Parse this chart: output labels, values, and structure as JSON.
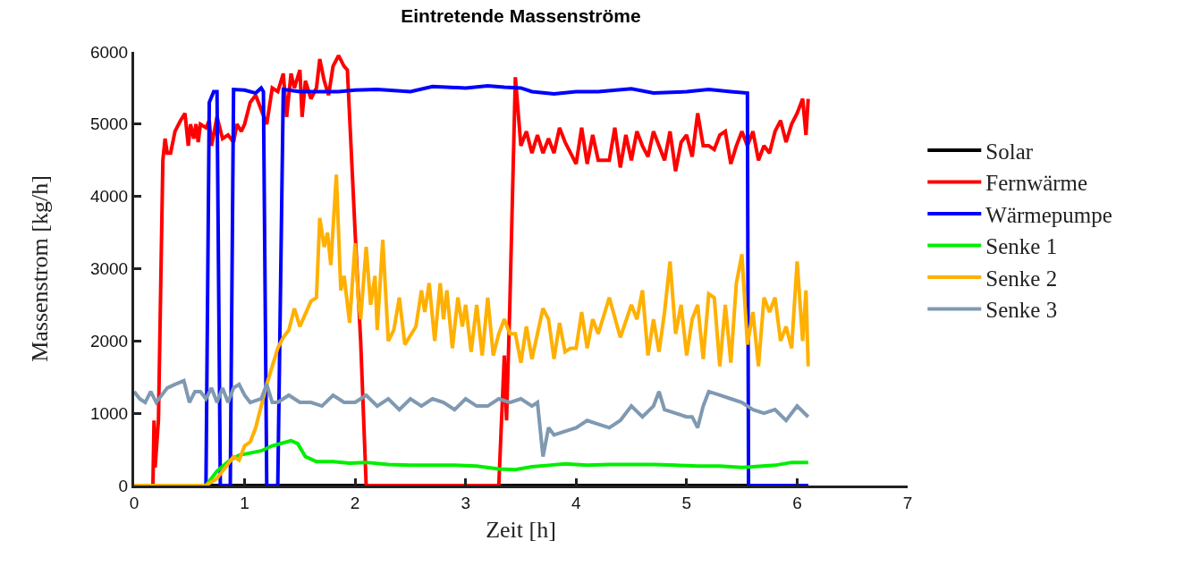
{
  "chart_data": {
    "type": "line",
    "title": "Eintretende Massenströme",
    "xlabel": "Zeit [h]",
    "ylabel": "Massenstrom [kg/h]",
    "xlim": [
      0,
      7
    ],
    "xticks": [
      0,
      1,
      2,
      3,
      4,
      5,
      6,
      7
    ],
    "ylim": [
      0,
      6000
    ],
    "yticks": [
      0,
      1000,
      2000,
      3000,
      4000,
      5000,
      6000
    ],
    "legend": "right",
    "marker": "none",
    "line_style": "solid",
    "series": [
      {
        "name": "Solar",
        "color": "#000000",
        "x": [
          0,
          6.1
        ],
        "values": [
          0,
          0
        ]
      },
      {
        "name": "Fernwärme",
        "color": "#ff0000",
        "x": [
          0,
          0.17,
          0.18,
          0.19,
          0.22,
          0.26,
          0.28,
          0.3,
          0.33,
          0.37,
          0.42,
          0.46,
          0.49,
          0.51,
          0.54,
          0.56,
          0.58,
          0.6,
          0.65,
          0.68,
          0.7,
          0.75,
          0.8,
          0.85,
          0.9,
          0.93,
          0.97,
          1.0,
          1.05,
          1.1,
          1.15,
          1.2,
          1.25,
          1.3,
          1.35,
          1.38,
          1.42,
          1.45,
          1.5,
          1.52,
          1.55,
          1.6,
          1.65,
          1.68,
          1.72,
          1.76,
          1.8,
          1.85,
          1.9,
          1.93,
          2.0,
          2.05,
          2.1,
          3.3,
          3.35,
          3.37,
          3.4,
          3.45,
          3.5,
          3.55,
          3.6,
          3.65,
          3.7,
          3.75,
          3.8,
          3.85,
          3.9,
          3.95,
          4.0,
          4.05,
          4.1,
          4.15,
          4.2,
          4.3,
          4.35,
          4.4,
          4.45,
          4.5,
          4.55,
          4.6,
          4.65,
          4.7,
          4.75,
          4.8,
          4.85,
          4.9,
          4.95,
          5.0,
          5.05,
          5.1,
          5.15,
          5.2,
          5.25,
          5.3,
          5.35,
          5.4,
          5.45,
          5.5,
          5.55,
          5.6,
          5.65,
          5.7,
          5.75,
          5.8,
          5.85,
          5.9,
          5.95,
          6.0,
          6.05,
          6.08,
          6.1
        ],
        "values": [
          0,
          0,
          900,
          250,
          900,
          4500,
          4800,
          4600,
          4600,
          4900,
          5050,
          5150,
          4700,
          5000,
          4800,
          5000,
          4750,
          5000,
          4950,
          5050,
          4700,
          5100,
          4800,
          4850,
          4750,
          5000,
          4900,
          5000,
          5300,
          5400,
          5200,
          5000,
          5500,
          5450,
          5700,
          5100,
          5700,
          5500,
          5750,
          5100,
          5600,
          5350,
          5500,
          5900,
          5600,
          5400,
          5800,
          5950,
          5800,
          5750,
          3500,
          2000,
          0,
          0,
          1800,
          900,
          2500,
          5650,
          4700,
          4900,
          4600,
          4850,
          4600,
          4800,
          4600,
          4950,
          4750,
          4600,
          4450,
          4950,
          4450,
          4850,
          4500,
          4500,
          4950,
          4400,
          4850,
          4500,
          4900,
          4700,
          4550,
          4900,
          4700,
          4500,
          4900,
          4350,
          4750,
          4850,
          4550,
          5150,
          4700,
          4700,
          4650,
          4850,
          4900,
          4450,
          4700,
          4900,
          4700,
          4900,
          4500,
          4700,
          4600,
          4900,
          5050,
          4750,
          5000,
          5150,
          5350,
          4850,
          5350
        ]
      },
      {
        "name": "Wärmepumpe",
        "color": "#0000ff",
        "x": [
          0,
          0.65,
          0.68,
          0.72,
          0.75,
          0.78,
          0.87,
          0.9,
          1.0,
          1.1,
          1.15,
          1.17,
          1.2,
          1.3,
          1.35,
          1.5,
          1.7,
          1.85,
          2.0,
          2.2,
          2.5,
          2.7,
          3.0,
          3.2,
          3.35,
          3.5,
          3.6,
          3.8,
          4.0,
          4.2,
          4.5,
          4.7,
          5.0,
          5.2,
          5.4,
          5.55,
          5.56,
          6.1
        ],
        "values": [
          0,
          0,
          5300,
          5450,
          5450,
          0,
          0,
          5480,
          5470,
          5430,
          5500,
          5450,
          0,
          0,
          5480,
          5450,
          5450,
          5450,
          5470,
          5480,
          5450,
          5520,
          5500,
          5530,
          5510,
          5500,
          5450,
          5420,
          5450,
          5450,
          5490,
          5430,
          5450,
          5480,
          5450,
          5430,
          0,
          0
        ]
      },
      {
        "name": "Senke 1",
        "color": "#00ee00",
        "x": [
          0,
          0.65,
          0.75,
          0.85,
          0.95,
          1.05,
          1.15,
          1.25,
          1.35,
          1.42,
          1.48,
          1.55,
          1.65,
          1.8,
          1.95,
          2.1,
          2.3,
          2.5,
          2.7,
          2.9,
          3.1,
          3.3,
          3.45,
          3.6,
          3.75,
          3.9,
          4.1,
          4.3,
          4.5,
          4.7,
          4.9,
          5.1,
          5.3,
          5.5,
          5.6,
          5.8,
          5.95,
          6.1
        ],
        "values": [
          0,
          0,
          200,
          330,
          420,
          450,
          480,
          550,
          590,
          620,
          580,
          400,
          330,
          330,
          310,
          320,
          290,
          280,
          280,
          280,
          270,
          230,
          220,
          260,
          280,
          300,
          280,
          290,
          290,
          290,
          280,
          270,
          270,
          250,
          260,
          280,
          320,
          320
        ]
      },
      {
        "name": "Senke 2",
        "color": "#ffb000",
        "x": [
          0,
          0.65,
          0.75,
          0.85,
          0.9,
          0.95,
          1.0,
          1.05,
          1.1,
          1.15,
          1.2,
          1.25,
          1.3,
          1.35,
          1.4,
          1.45,
          1.5,
          1.6,
          1.65,
          1.68,
          1.72,
          1.75,
          1.78,
          1.83,
          1.87,
          1.9,
          1.95,
          2.0,
          2.03,
          2.05,
          2.1,
          2.14,
          2.18,
          2.2,
          2.25,
          2.3,
          2.35,
          2.4,
          2.45,
          2.55,
          2.6,
          2.63,
          2.67,
          2.72,
          2.77,
          2.8,
          2.83,
          2.88,
          2.93,
          2.97,
          3.0,
          3.05,
          3.1,
          3.15,
          3.2,
          3.25,
          3.3,
          3.35,
          3.4,
          3.45,
          3.5,
          3.55,
          3.6,
          3.7,
          3.75,
          3.8,
          3.85,
          3.9,
          3.95,
          4.0,
          4.05,
          4.1,
          4.15,
          4.2,
          4.3,
          4.4,
          4.5,
          4.55,
          4.6,
          4.65,
          4.7,
          4.75,
          4.8,
          4.85,
          4.9,
          4.95,
          5.0,
          5.05,
          5.1,
          5.15,
          5.2,
          5.25,
          5.3,
          5.35,
          5.4,
          5.45,
          5.5,
          5.55,
          5.6,
          5.65,
          5.7,
          5.75,
          5.8,
          5.85,
          5.9,
          5.95,
          6.0,
          6.05,
          6.08,
          6.1
        ],
        "values": [
          0,
          0,
          100,
          300,
          400,
          350,
          550,
          600,
          800,
          1100,
          1400,
          1650,
          1900,
          2050,
          2150,
          2450,
          2200,
          2550,
          2600,
          3700,
          3300,
          3500,
          3050,
          4300,
          2700,
          2900,
          2250,
          3350,
          2550,
          2300,
          3300,
          2500,
          2900,
          2150,
          3400,
          2000,
          2150,
          2600,
          1950,
          2200,
          2700,
          2400,
          2800,
          2000,
          2800,
          2300,
          2700,
          1900,
          2600,
          2200,
          2500,
          1850,
          2500,
          1800,
          2600,
          1800,
          2100,
          2300,
          2100,
          2100,
          1700,
          2200,
          1750,
          2450,
          2300,
          1750,
          2250,
          1850,
          1900,
          1900,
          2400,
          1900,
          2300,
          2100,
          2600,
          2050,
          2500,
          2300,
          2700,
          1800,
          2300,
          1850,
          2400,
          3100,
          2100,
          2500,
          1800,
          2300,
          2500,
          1750,
          2650,
          2600,
          1650,
          2500,
          1700,
          2800,
          3200,
          1950,
          2400,
          1650,
          2600,
          2400,
          2600,
          2000,
          2200,
          1900,
          3100,
          2000,
          2700,
          1650
        ]
      },
      {
        "name": "Senke 3",
        "color": "#7f99b2",
        "x": [
          0.0,
          0.05,
          0.1,
          0.15,
          0.2,
          0.3,
          0.37,
          0.45,
          0.5,
          0.55,
          0.6,
          0.65,
          0.7,
          0.75,
          0.8,
          0.85,
          0.9,
          0.95,
          1.0,
          1.05,
          1.15,
          1.2,
          1.25,
          1.3,
          1.4,
          1.5,
          1.6,
          1.7,
          1.8,
          1.9,
          2.0,
          2.1,
          2.2,
          2.3,
          2.4,
          2.5,
          2.6,
          2.7,
          2.8,
          2.9,
          3.0,
          3.1,
          3.2,
          3.3,
          3.4,
          3.5,
          3.6,
          3.65,
          3.7,
          3.75,
          3.8,
          3.9,
          4.0,
          4.1,
          4.2,
          4.3,
          4.4,
          4.5,
          4.6,
          4.7,
          4.75,
          4.8,
          4.9,
          5.0,
          5.05,
          5.1,
          5.15,
          5.2,
          5.3,
          5.4,
          5.5,
          5.6,
          5.7,
          5.8,
          5.9,
          6.0,
          6.1
        ],
        "values": [
          1300,
          1200,
          1150,
          1300,
          1150,
          1350,
          1400,
          1450,
          1150,
          1300,
          1300,
          1200,
          1350,
          1150,
          1350,
          1150,
          1350,
          1400,
          1250,
          1150,
          1200,
          1400,
          1150,
          1150,
          1250,
          1150,
          1150,
          1100,
          1250,
          1150,
          1150,
          1250,
          1100,
          1200,
          1050,
          1200,
          1100,
          1200,
          1150,
          1050,
          1200,
          1100,
          1100,
          1200,
          1150,
          1200,
          1100,
          1150,
          400,
          800,
          700,
          750,
          800,
          900,
          850,
          800,
          900,
          1100,
          950,
          1100,
          1300,
          1050,
          1000,
          950,
          950,
          800,
          1100,
          1300,
          1250,
          1200,
          1150,
          1050,
          1000,
          1050,
          900,
          1100,
          950
        ]
      }
    ]
  }
}
